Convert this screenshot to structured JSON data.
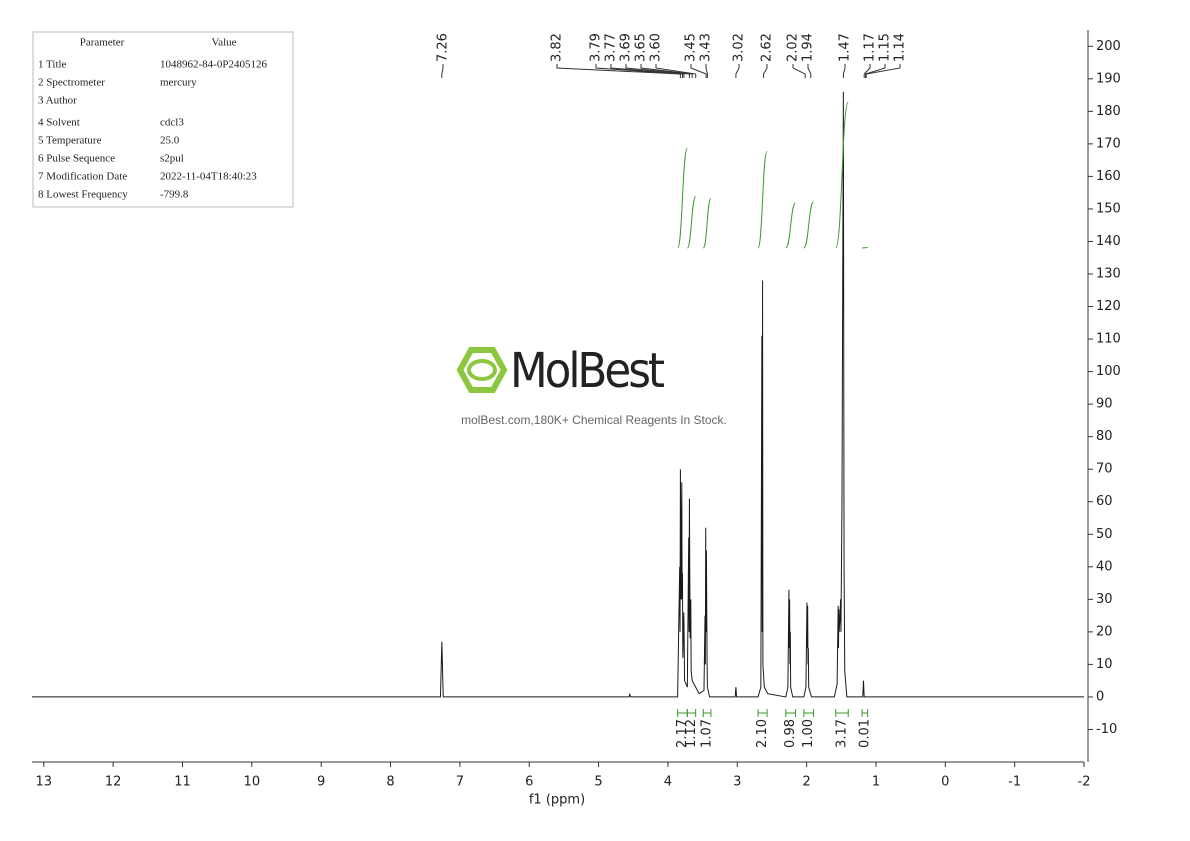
{
  "parameters": {
    "header": [
      "Parameter",
      "Value"
    ],
    "rows": [
      [
        "1 Title",
        "1048962-84-0P2405126"
      ],
      [
        "2 Spectrometer",
        "mercury"
      ],
      [
        "3 Author",
        ""
      ],
      [
        "4 Solvent",
        "cdcl3"
      ],
      [
        "5 Temperature",
        "25.0"
      ],
      [
        "6 Pulse Sequence",
        "s2pul"
      ],
      [
        "7 Modification Date",
        "2022-11-04T18:40:23"
      ],
      [
        "8 Lowest Frequency",
        "-799.8"
      ]
    ]
  },
  "watermark": {
    "brand": "MolBest",
    "tagline": "molBest.com,180K+ Chemical Reagents In Stock."
  },
  "chart_data": {
    "type": "line",
    "color": "#1a1a1a",
    "xlabel": "f1 (ppm)",
    "x": [
      13.17,
      7.28,
      7.26,
      7.24,
      4.56,
      4.55,
      4.54,
      3.86,
      3.83,
      3.825,
      3.82,
      3.81,
      3.8,
      3.795,
      3.79,
      3.785,
      3.77,
      3.76,
      3.72,
      3.7,
      3.695,
      3.69,
      3.68,
      3.67,
      3.665,
      3.65,
      3.6,
      3.55,
      3.48,
      3.465,
      3.46,
      3.455,
      3.45,
      3.445,
      3.435,
      3.43,
      3.4,
      3.03,
      3.02,
      3.01,
      2.7,
      2.66,
      2.645,
      2.64,
      2.635,
      2.63,
      2.61,
      2.56,
      2.3,
      2.27,
      2.255,
      2.25,
      2.245,
      2.24,
      2.235,
      2.23,
      2.2,
      2.04,
      2.01,
      1.995,
      1.99,
      1.985,
      1.98,
      1.975,
      1.97,
      1.93,
      1.6,
      1.56,
      1.545,
      1.54,
      1.535,
      1.53,
      1.52,
      1.51,
      1.505,
      1.49,
      1.47,
      1.46,
      1.45,
      1.42,
      1.19,
      1.18,
      1.17,
      -2
    ],
    "values": [
      0,
      0,
      17,
      0,
      0,
      1,
      0,
      0,
      40,
      20,
      70,
      30,
      66,
      30,
      38,
      12,
      26,
      5,
      3,
      49,
      20,
      61,
      18,
      30,
      8,
      5,
      3,
      1,
      2,
      25,
      10,
      52,
      20,
      45,
      10,
      3,
      0,
      0,
      3,
      0,
      0,
      3,
      111,
      20,
      128,
      10,
      3,
      1,
      0,
      3,
      33,
      15,
      30,
      10,
      20,
      3,
      0,
      0,
      3,
      29,
      15,
      28,
      10,
      15,
      3,
      0,
      0,
      4,
      28,
      15,
      27,
      20,
      24,
      30,
      20,
      60,
      186,
      40,
      8,
      0,
      0,
      5,
      0,
      0
    ],
    "xlim": [
      13.17,
      -2
    ],
    "xticks": [
      13,
      12,
      11,
      10,
      9,
      8,
      7,
      6,
      5,
      4,
      3,
      2,
      1,
      0,
      -1,
      -2
    ],
    "ylim": [
      -20,
      205
    ],
    "yticks": [
      200,
      190,
      180,
      170,
      160,
      150,
      140,
      130,
      120,
      110,
      100,
      90,
      80,
      70,
      60,
      50,
      40,
      30,
      20,
      10,
      0,
      -10
    ],
    "peak_labels": [
      {
        "value": 7.26,
        "label": "7.26"
      },
      {
        "value": 3.82,
        "label": "3.82"
      },
      {
        "value": 3.79,
        "label": "3.79"
      },
      {
        "value": 3.77,
        "label": "3.77"
      },
      {
        "value": 3.69,
        "label": "3.69"
      },
      {
        "value": 3.65,
        "label": "3.65"
      },
      {
        "value": 3.6,
        "label": "3.60"
      },
      {
        "value": 3.45,
        "label": "3.45"
      },
      {
        "value": 3.43,
        "label": "3.43"
      },
      {
        "value": 3.02,
        "label": "3.02"
      },
      {
        "value": 2.62,
        "label": "2.62"
      },
      {
        "value": 2.02,
        "label": "2.02"
      },
      {
        "value": 1.94,
        "label": "1.94"
      },
      {
        "value": 1.47,
        "label": "1.47"
      },
      {
        "value": 1.17,
        "label": "1.17"
      },
      {
        "value": 1.15,
        "label": "1.15"
      },
      {
        "value": 1.14,
        "label": "1.14"
      }
    ],
    "integral_color": "#3a9a2a",
    "integrals": [
      {
        "from": 3.86,
        "to": 3.72,
        "value": 2.17,
        "label": "2.17"
      },
      {
        "from": 3.72,
        "to": 3.6,
        "value": 1.12,
        "label": "1.12"
      },
      {
        "from": 3.49,
        "to": 3.38,
        "value": 1.07,
        "label": "1.07"
      },
      {
        "from": 2.7,
        "to": 2.57,
        "value": 2.1,
        "label": "2.10"
      },
      {
        "from": 2.3,
        "to": 2.16,
        "value": 0.98,
        "label": "0.98"
      },
      {
        "from": 2.04,
        "to": 1.9,
        "value": 1.0,
        "label": "1.00"
      },
      {
        "from": 1.58,
        "to": 1.4,
        "value": 3.17,
        "label": "3.17"
      },
      {
        "from": 1.2,
        "to": 1.12,
        "value": 0.01,
        "label": "0.01"
      }
    ]
  }
}
